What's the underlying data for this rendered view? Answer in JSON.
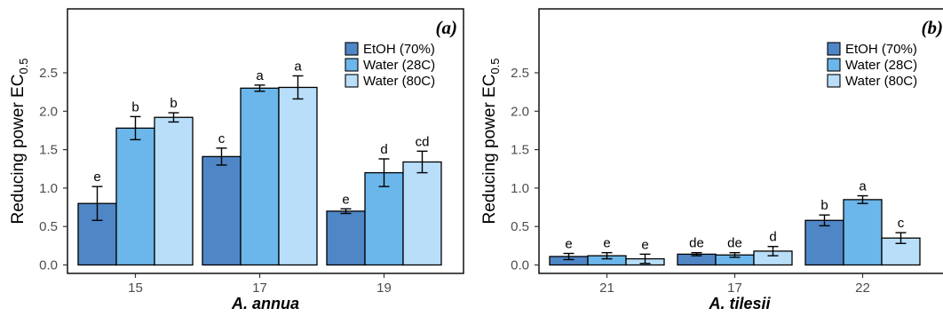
{
  "figure": {
    "colors": {
      "EtOH (70%)": "#4f86c6",
      "Water (28C)": "#6bb6ea",
      "Water (80C)": "#b9defa"
    }
  },
  "chart_data": [
    {
      "type": "bar",
      "panel_tag": "(a)",
      "ylabel": "Reducing power  EC",
      "ylabel_sub": "0.5",
      "xlabel": "A. annua",
      "ylim": [
        0,
        2.6
      ],
      "yticks": [
        "0.0",
        "0.5",
        "1.0",
        "1.5",
        "2.0",
        "2.5"
      ],
      "categories": [
        "15",
        "17",
        "19"
      ],
      "legend_position": "top-right",
      "series": [
        {
          "name": "EtOH (70%)",
          "values": [
            0.8,
            1.41,
            0.7
          ],
          "errors": [
            0.22,
            0.11,
            0.03
          ],
          "letters": [
            "e",
            "c",
            "e"
          ]
        },
        {
          "name": "Water (28C)",
          "values": [
            1.78,
            2.3,
            1.2
          ],
          "errors": [
            0.15,
            0.04,
            0.18
          ],
          "letters": [
            "b",
            "a",
            "d"
          ]
        },
        {
          "name": "Water (80C)",
          "values": [
            1.92,
            2.31,
            1.34
          ],
          "errors": [
            0.06,
            0.15,
            0.14
          ],
          "letters": [
            "b",
            "a",
            "cd"
          ]
        }
      ]
    },
    {
      "type": "bar",
      "panel_tag": "(b)",
      "ylabel": "Reducing power  EC",
      "ylabel_sub": "0.5",
      "xlabel": "A. tilesii",
      "ylim": [
        0,
        2.6
      ],
      "yticks": [
        "0.0",
        "0.5",
        "1.0",
        "1.5",
        "2.0",
        "2.5"
      ],
      "categories": [
        "21",
        "17",
        "22"
      ],
      "legend_position": "top-right",
      "series": [
        {
          "name": "EtOH (70%)",
          "values": [
            0.11,
            0.14,
            0.58
          ],
          "errors": [
            0.04,
            0.02,
            0.07
          ],
          "letters": [
            "e",
            "de",
            "b"
          ]
        },
        {
          "name": "Water (28C)",
          "values": [
            0.12,
            0.13,
            0.85
          ],
          "errors": [
            0.04,
            0.03,
            0.05
          ],
          "letters": [
            "e",
            "de",
            "a"
          ]
        },
        {
          "name": "Water (80C)",
          "values": [
            0.08,
            0.18,
            0.35
          ],
          "errors": [
            0.06,
            0.06,
            0.07
          ],
          "letters": [
            "e",
            "d",
            "c"
          ]
        }
      ]
    }
  ]
}
